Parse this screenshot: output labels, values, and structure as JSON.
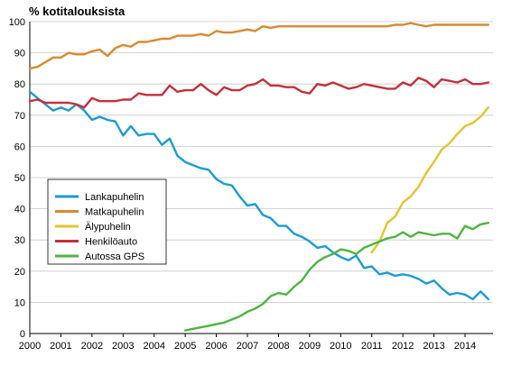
{
  "chart_data": {
    "type": "line",
    "title": "",
    "xlabel": "",
    "ylabel": "% kotitalouksista",
    "xlim": [
      2000,
      2014.9
    ],
    "ylim": [
      0,
      100
    ],
    "x_ticks": [
      2000,
      2001,
      2002,
      2003,
      2004,
      2005,
      2006,
      2007,
      2008,
      2009,
      2010,
      2011,
      2012,
      2013,
      2014
    ],
    "y_ticks": [
      0,
      10,
      20,
      30,
      40,
      50,
      60,
      70,
      80,
      90,
      100
    ],
    "grid": true,
    "legend_position": "lower-left",
    "series": [
      {
        "name": "Lankapuhelin",
        "color": "#1a9bd7",
        "points": [
          [
            2000.0,
            77.5
          ],
          [
            2000.25,
            75.5
          ],
          [
            2000.5,
            73.5
          ],
          [
            2000.75,
            71.5
          ],
          [
            2001.0,
            72.5
          ],
          [
            2001.25,
            71.5
          ],
          [
            2001.5,
            73.5
          ],
          [
            2001.75,
            71.5
          ],
          [
            2002.0,
            68.5
          ],
          [
            2002.25,
            69.5
          ],
          [
            2002.5,
            68.5
          ],
          [
            2002.75,
            68.0
          ],
          [
            2003.0,
            63.5
          ],
          [
            2003.25,
            66.5
          ],
          [
            2003.5,
            63.5
          ],
          [
            2003.75,
            64.0
          ],
          [
            2004.0,
            64.0
          ],
          [
            2004.25,
            60.5
          ],
          [
            2004.5,
            62.5
          ],
          [
            2004.75,
            57.0
          ],
          [
            2005.0,
            55.0
          ],
          [
            2005.25,
            54.0
          ],
          [
            2005.5,
            53.0
          ],
          [
            2005.75,
            52.5
          ],
          [
            2006.0,
            49.5
          ],
          [
            2006.25,
            48.0
          ],
          [
            2006.5,
            47.5
          ],
          [
            2006.75,
            44.0
          ],
          [
            2007.0,
            41.0
          ],
          [
            2007.25,
            41.5
          ],
          [
            2007.5,
            38.0
          ],
          [
            2007.75,
            37.0
          ],
          [
            2008.0,
            34.5
          ],
          [
            2008.25,
            34.5
          ],
          [
            2008.5,
            32.0
          ],
          [
            2008.75,
            31.0
          ],
          [
            2009.0,
            29.5
          ],
          [
            2009.25,
            27.5
          ],
          [
            2009.5,
            28.0
          ],
          [
            2009.75,
            26.0
          ],
          [
            2010.0,
            24.5
          ],
          [
            2010.25,
            23.5
          ],
          [
            2010.5,
            25.0
          ],
          [
            2010.75,
            21.0
          ],
          [
            2011.0,
            21.5
          ],
          [
            2011.25,
            19.0
          ],
          [
            2011.5,
            19.5
          ],
          [
            2011.75,
            18.5
          ],
          [
            2012.0,
            19.0
          ],
          [
            2012.25,
            18.5
          ],
          [
            2012.5,
            17.5
          ],
          [
            2012.75,
            16.0
          ],
          [
            2013.0,
            17.0
          ],
          [
            2013.25,
            14.5
          ],
          [
            2013.5,
            12.5
          ],
          [
            2013.75,
            13.0
          ],
          [
            2014.0,
            12.5
          ],
          [
            2014.25,
            11.0
          ],
          [
            2014.5,
            13.5
          ],
          [
            2014.75,
            11.0
          ]
        ]
      },
      {
        "name": "Matkapuhelin",
        "color": "#d9892d",
        "points": [
          [
            2000.0,
            85.0
          ],
          [
            2000.25,
            85.5
          ],
          [
            2000.5,
            87.0
          ],
          [
            2000.75,
            88.5
          ],
          [
            2001.0,
            88.5
          ],
          [
            2001.25,
            90.0
          ],
          [
            2001.5,
            89.5
          ],
          [
            2001.75,
            89.5
          ],
          [
            2002.0,
            90.5
          ],
          [
            2002.25,
            91.0
          ],
          [
            2002.5,
            89.0
          ],
          [
            2002.75,
            91.5
          ],
          [
            2003.0,
            92.5
          ],
          [
            2003.25,
            92.0
          ],
          [
            2003.5,
            93.5
          ],
          [
            2003.75,
            93.5
          ],
          [
            2004.0,
            94.0
          ],
          [
            2004.25,
            94.5
          ],
          [
            2004.5,
            94.5
          ],
          [
            2004.75,
            95.5
          ],
          [
            2005.0,
            95.5
          ],
          [
            2005.25,
            95.5
          ],
          [
            2005.5,
            96.0
          ],
          [
            2005.75,
            95.5
          ],
          [
            2006.0,
            97.0
          ],
          [
            2006.25,
            96.5
          ],
          [
            2006.5,
            96.5
          ],
          [
            2006.75,
            97.0
          ],
          [
            2007.0,
            97.5
          ],
          [
            2007.25,
            97.0
          ],
          [
            2007.5,
            98.5
          ],
          [
            2007.75,
            98.0
          ],
          [
            2008.0,
            98.5
          ],
          [
            2008.25,
            98.5
          ],
          [
            2008.5,
            98.5
          ],
          [
            2008.75,
            98.5
          ],
          [
            2009.0,
            98.5
          ],
          [
            2009.25,
            98.5
          ],
          [
            2009.5,
            98.5
          ],
          [
            2009.75,
            98.5
          ],
          [
            2010.0,
            98.5
          ],
          [
            2010.25,
            98.5
          ],
          [
            2010.5,
            98.5
          ],
          [
            2010.75,
            98.5
          ],
          [
            2011.0,
            98.5
          ],
          [
            2011.25,
            98.5
          ],
          [
            2011.5,
            98.5
          ],
          [
            2011.75,
            99.0
          ],
          [
            2012.0,
            99.0
          ],
          [
            2012.25,
            99.5
          ],
          [
            2012.5,
            99.0
          ],
          [
            2012.75,
            98.5
          ],
          [
            2013.0,
            99.0
          ],
          [
            2013.25,
            99.0
          ],
          [
            2013.5,
            99.0
          ],
          [
            2013.75,
            99.0
          ],
          [
            2014.0,
            99.0
          ],
          [
            2014.25,
            99.0
          ],
          [
            2014.5,
            99.0
          ],
          [
            2014.75,
            99.0
          ]
        ]
      },
      {
        "name": "Älypuhelin",
        "color": "#e5c42e",
        "points": [
          [
            2011.0,
            26.0
          ],
          [
            2011.25,
            29.5
          ],
          [
            2011.5,
            35.5
          ],
          [
            2011.75,
            37.5
          ],
          [
            2012.0,
            42.0
          ],
          [
            2012.25,
            44.0
          ],
          [
            2012.5,
            47.0
          ],
          [
            2012.75,
            51.5
          ],
          [
            2013.0,
            55.0
          ],
          [
            2013.25,
            59.0
          ],
          [
            2013.5,
            61.0
          ],
          [
            2013.75,
            64.0
          ],
          [
            2014.0,
            66.5
          ],
          [
            2014.25,
            67.5
          ],
          [
            2014.5,
            69.5
          ],
          [
            2014.75,
            72.5
          ]
        ]
      },
      {
        "name": "Henkilöauto",
        "color": "#c5303a",
        "points": [
          [
            2000.0,
            74.5
          ],
          [
            2000.25,
            75.0
          ],
          [
            2000.5,
            74.0
          ],
          [
            2000.75,
            74.0
          ],
          [
            2001.0,
            74.0
          ],
          [
            2001.25,
            74.0
          ],
          [
            2001.5,
            73.5
          ],
          [
            2001.75,
            72.5
          ],
          [
            2002.0,
            75.5
          ],
          [
            2002.25,
            74.5
          ],
          [
            2002.5,
            74.5
          ],
          [
            2002.75,
            74.5
          ],
          [
            2003.0,
            75.0
          ],
          [
            2003.25,
            75.0
          ],
          [
            2003.5,
            77.0
          ],
          [
            2003.75,
            76.5
          ],
          [
            2004.0,
            76.5
          ],
          [
            2004.25,
            76.5
          ],
          [
            2004.5,
            79.5
          ],
          [
            2004.75,
            77.5
          ],
          [
            2005.0,
            78.0
          ],
          [
            2005.25,
            78.0
          ],
          [
            2005.5,
            80.0
          ],
          [
            2005.75,
            78.0
          ],
          [
            2006.0,
            76.5
          ],
          [
            2006.25,
            79.0
          ],
          [
            2006.5,
            78.0
          ],
          [
            2006.75,
            78.0
          ],
          [
            2007.0,
            79.5
          ],
          [
            2007.25,
            80.0
          ],
          [
            2007.5,
            81.5
          ],
          [
            2007.75,
            79.5
          ],
          [
            2008.0,
            79.5
          ],
          [
            2008.25,
            79.0
          ],
          [
            2008.5,
            79.0
          ],
          [
            2008.75,
            77.5
          ],
          [
            2009.0,
            77.0
          ],
          [
            2009.25,
            80.0
          ],
          [
            2009.5,
            79.5
          ],
          [
            2009.75,
            80.5
          ],
          [
            2010.0,
            79.5
          ],
          [
            2010.25,
            78.5
          ],
          [
            2010.5,
            79.0
          ],
          [
            2010.75,
            80.0
          ],
          [
            2011.0,
            79.5
          ],
          [
            2011.25,
            79.0
          ],
          [
            2011.5,
            78.5
          ],
          [
            2011.75,
            78.5
          ],
          [
            2012.0,
            80.5
          ],
          [
            2012.25,
            79.5
          ],
          [
            2012.5,
            82.0
          ],
          [
            2012.75,
            81.0
          ],
          [
            2013.0,
            79.0
          ],
          [
            2013.25,
            81.5
          ],
          [
            2013.5,
            81.0
          ],
          [
            2013.75,
            80.5
          ],
          [
            2014.0,
            81.5
          ],
          [
            2014.25,
            80.0
          ],
          [
            2014.5,
            80.0
          ],
          [
            2014.75,
            80.5
          ]
        ]
      },
      {
        "name": "Autossa GPS",
        "color": "#4cb53f",
        "points": [
          [
            2005.0,
            1.0
          ],
          [
            2005.25,
            1.5
          ],
          [
            2005.5,
            2.0
          ],
          [
            2005.75,
            2.5
          ],
          [
            2006.0,
            3.0
          ],
          [
            2006.25,
            3.5
          ],
          [
            2006.5,
            4.5
          ],
          [
            2006.75,
            5.5
          ],
          [
            2007.0,
            7.0
          ],
          [
            2007.25,
            8.0
          ],
          [
            2007.5,
            9.5
          ],
          [
            2007.75,
            12.0
          ],
          [
            2008.0,
            13.0
          ],
          [
            2008.25,
            12.5
          ],
          [
            2008.5,
            15.0
          ],
          [
            2008.75,
            17.0
          ],
          [
            2009.0,
            20.5
          ],
          [
            2009.25,
            23.0
          ],
          [
            2009.5,
            24.5
          ],
          [
            2009.75,
            25.5
          ],
          [
            2010.0,
            27.0
          ],
          [
            2010.25,
            26.5
          ],
          [
            2010.5,
            25.5
          ],
          [
            2010.75,
            27.5
          ],
          [
            2011.0,
            28.5
          ],
          [
            2011.25,
            29.5
          ],
          [
            2011.5,
            30.5
          ],
          [
            2011.75,
            31.0
          ],
          [
            2012.0,
            32.5
          ],
          [
            2012.25,
            31.0
          ],
          [
            2012.5,
            32.5
          ],
          [
            2012.75,
            32.0
          ],
          [
            2013.0,
            31.5
          ],
          [
            2013.25,
            32.0
          ],
          [
            2013.5,
            32.0
          ],
          [
            2013.75,
            30.5
          ],
          [
            2014.0,
            34.5
          ],
          [
            2014.25,
            33.5
          ],
          [
            2014.5,
            35.0
          ],
          [
            2014.75,
            35.5
          ]
        ]
      }
    ]
  }
}
